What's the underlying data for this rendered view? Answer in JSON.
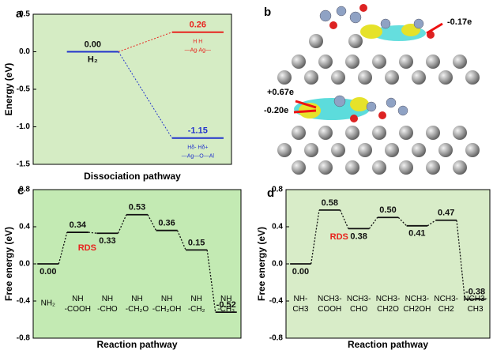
{
  "chart_data": [
    {
      "type": "energy_diagram",
      "label": "a",
      "ylabel": "Energy (eV)",
      "xlabel": "Dissociation pathway",
      "ylim": [
        -1.5,
        0.5
      ],
      "yticks": [
        0.5,
        {
          "value": 0,
          "label": "0.0"
        },
        -0.5,
        {
          "value": -1,
          "label": "-1.0"
        },
        -1.5
      ],
      "values": [
        0,
        0.26,
        -1.15
      ],
      "value_labels": [
        "0.00",
        "0.26",
        "-1.15"
      ],
      "colors": [
        "#2233cc",
        "#e8231e",
        "#2233cc"
      ],
      "label_colors": [
        "#111111",
        "#e8231e",
        "#2233cc"
      ],
      "species": [
        [
          "H₂"
        ],
        [
          "H      H",
          "—Ag·Ag—"
        ],
        [
          "Hδ-   Hδ+",
          "—Ag—O—Al"
        ]
      ],
      "background": "#d5ecc4"
    },
    {
      "type": "reaction_profile",
      "label": "c",
      "ylabel": "Free energy (eV)",
      "xlabel": "Reaction pathway",
      "ylim": [
        -0.8,
        0.8
      ],
      "yticks": [
        0.8,
        0.4,
        {
          "value": 0,
          "label": "0.0"
        },
        -0.4,
        -0.8
      ],
      "categories": [
        "NH₂",
        "NH\n-COOH",
        "NH\n-CHO",
        "NH\n-CH₂O",
        "NH\n-CH₂OH",
        "NH\n-CH₂",
        "NH\n-CH₃"
      ],
      "values": [
        0,
        0.34,
        0.33,
        0.53,
        0.36,
        0.15,
        -0.52
      ],
      "value_labels": [
        "0.00",
        "0.34",
        "0.33",
        "0.53",
        "0.36",
        "0.15",
        "-0.52"
      ],
      "annotation": "RDS",
      "annotation_color": "#e8231e",
      "color": "#111111",
      "background": "#c3eab3"
    },
    {
      "type": "reaction_profile",
      "label": "d",
      "ylabel": "Free energy (eV)",
      "xlabel": "Reaction pathway",
      "ylim": [
        -0.8,
        0.8
      ],
      "yticks": [
        0.8,
        0.4,
        {
          "value": 0,
          "label": "0.0"
        },
        -0.4,
        -0.8
      ],
      "categories": [
        "NH-\nCH3",
        "NCH3-\nCOOH",
        "NCH3-\nCHO",
        "NCH3-\nCH2O",
        "NCH3-\nCH2OH",
        "NCH3-\nCH2",
        "NCH3-\nCH3"
      ],
      "values": [
        0,
        0.58,
        0.38,
        0.5,
        0.41,
        0.47,
        -0.38
      ],
      "value_labels": [
        "0.00",
        "0.58",
        "0.38",
        "0.50",
        "0.41",
        "0.47",
        "-0.38"
      ],
      "annotation": "RDS",
      "annotation_color": "#e8231e",
      "color": "#111111",
      "background": "#d8ecc8"
    }
  ],
  "image": {
    "label": "b",
    "annotations": [
      "-0.17e",
      "+0.67e",
      "-0.20e"
    ]
  }
}
